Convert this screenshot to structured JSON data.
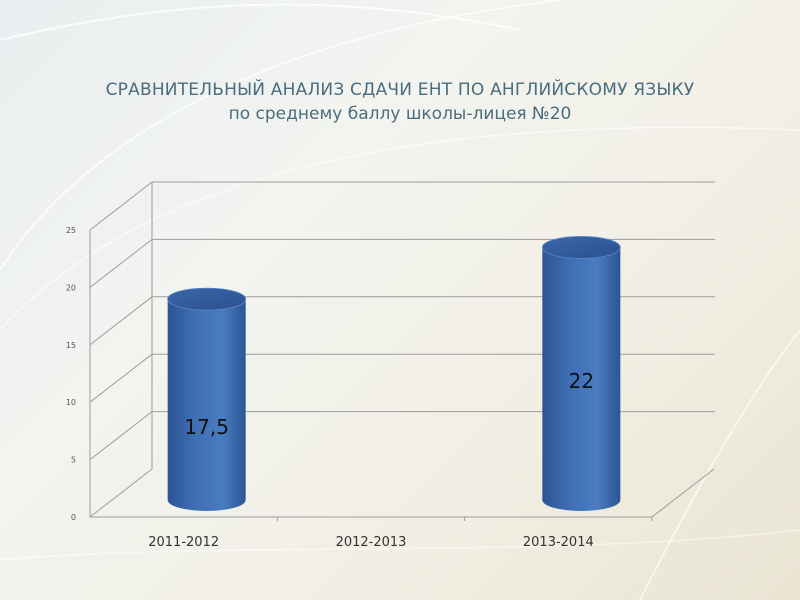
{
  "slide": {
    "title": "СРАВНИТЕЛЬНЫЙ АНАЛИЗ СДАЧИ ЕНТ ПО АНГЛИЙСКОМУ ЯЗЫКУ",
    "subtitle": "по среднему баллу школы-лицея №20"
  },
  "colors": {
    "bar": "#3f6fb5",
    "bar_dark": "#2c5593",
    "title": "#4a6d7e",
    "grid": "#9c9c9c"
  },
  "chart_data": {
    "type": "bar",
    "style": "3d-cylinder",
    "categories": [
      "2011-2012",
      "2012-2013",
      "2013-2014"
    ],
    "values": [
      17.5,
      null,
      22
    ],
    "data_labels": [
      "17,5",
      "",
      "22"
    ],
    "yticks": [
      "0",
      "5",
      "10",
      "15",
      "20",
      "25"
    ],
    "ylim": [
      0,
      25
    ],
    "grid": true,
    "legend": "none"
  }
}
